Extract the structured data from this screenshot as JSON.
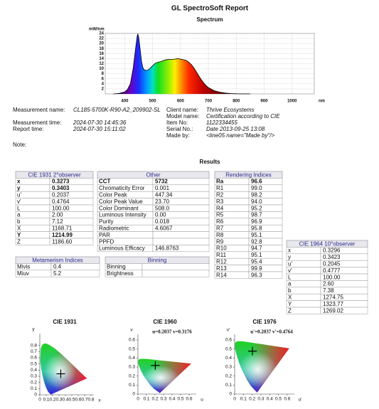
{
  "title": "GL SpectroSoft Report",
  "spectrum": {
    "type": "line",
    "title": "Spectrum",
    "y_label": "mW/nm",
    "x_label": "nm",
    "xlim": [
      330,
      1080
    ],
    "ylim": [
      0,
      24
    ],
    "xticks": [
      400,
      500,
      600,
      700,
      800,
      900,
      1000
    ],
    "yticks": [
      2,
      4,
      6,
      8,
      10,
      12,
      14,
      16,
      18,
      20,
      22,
      24
    ],
    "x": [
      360,
      380,
      400,
      410,
      420,
      430,
      440,
      445,
      447,
      450,
      455,
      460,
      465,
      470,
      480,
      490,
      500,
      510,
      520,
      530,
      540,
      550,
      560,
      570,
      580,
      590,
      600,
      610,
      620,
      630,
      640,
      650,
      660,
      670,
      680,
      690,
      700,
      720,
      740,
      760,
      780,
      800,
      850
    ],
    "values": [
      0,
      0.2,
      0.8,
      1.8,
      4,
      10,
      19,
      23.2,
      23.7,
      22.5,
      18,
      13,
      10.5,
      9.5,
      9.3,
      10,
      11.2,
      12.2,
      12.6,
      12.8,
      13.3,
      13.6,
      13.7,
      13.7,
      13.8,
      14,
      13.8,
      13.6,
      13.3,
      12.6,
      11.5,
      10,
      8.2,
      6.4,
      4.8,
      3.5,
      2.5,
      1.3,
      0.7,
      0.35,
      0.15,
      0.05,
      0
    ]
  },
  "info": {
    "left": [
      {
        "label": "Measurement name:",
        "value": "CL185-5700K-R90-A2_209902-SL"
      },
      {
        "label": "Measurement time:",
        "value": "2024-07-30 14:45:36"
      },
      {
        "label": "Report time:",
        "value": "2024-07-30 15:11:02"
      }
    ],
    "right": [
      {
        "label": "Client name:",
        "value": "Thrive Ecosystems"
      },
      {
        "label": "Model name:",
        "value": "Certification according to CIE"
      },
      {
        "label": "Item No:",
        "value": "1122334455"
      },
      {
        "label": "Serial No.:",
        "value": "Date 2013-09-25 13:08"
      },
      {
        "label": "Made by:",
        "value": "<line05 name=\"Made by\"/>"
      }
    ],
    "note": "Note:"
  },
  "results": {
    "title": "Results",
    "tables": [
      {
        "title": "CIE 1931 2°observer",
        "rows": [
          {
            "label": "x",
            "value": "0.3273",
            "bold": true
          },
          {
            "label": "y",
            "value": "0.3403",
            "bold": true
          },
          {
            "label": "u'",
            "value": "0.2037"
          },
          {
            "label": "v'",
            "value": "0.4764"
          },
          {
            "label": "L",
            "value": "100.00"
          },
          {
            "label": "a",
            "value": "2.00"
          },
          {
            "label": "b",
            "value": "7.12"
          },
          {
            "label": "X",
            "value": "1168.71"
          },
          {
            "label": "Y",
            "value": "1214.99",
            "bold": true
          },
          {
            "label": "Z",
            "value": "1186.60"
          }
        ]
      },
      {
        "title": "Other",
        "rows": [
          {
            "label": "CCT",
            "value": "5732",
            "bold": true
          },
          {
            "label": "Chromaticity Error",
            "value": "0.001"
          },
          {
            "label": "Color Peak",
            "value": "447.34"
          },
          {
            "label": "Color Peak Value",
            "value": "23.70"
          },
          {
            "label": "Color Dominant",
            "value": "508.0"
          },
          {
            "label": "Luminous Intensity",
            "value": "0.00"
          },
          {
            "label": "Purity",
            "value": "0.018"
          },
          {
            "label": "Radiometric",
            "value": "4.6067"
          },
          {
            "label": "PAR"
          },
          {
            "label": "PPFD"
          },
          {
            "label": "Luminous Efficacy",
            "value": "146.8763"
          }
        ]
      },
      {
        "title": "Rendering Indices",
        "rows": [
          {
            "label": "Ra",
            "value": "96.6",
            "bold": true
          },
          {
            "label": "R1",
            "value": "99.0"
          },
          {
            "label": "R2",
            "value": "98.2"
          },
          {
            "label": "R3",
            "value": "94.0"
          },
          {
            "label": "R4",
            "value": "95.2"
          },
          {
            "label": "R5",
            "value": "98.7"
          },
          {
            "label": "R6",
            "value": "96.9"
          },
          {
            "label": "R7",
            "value": "95.8"
          },
          {
            "label": "R8",
            "value": "95.1"
          },
          {
            "label": "R9",
            "value": "92.8"
          },
          {
            "label": "R10",
            "value": "94.7"
          },
          {
            "label": "R11",
            "value": "95.1"
          },
          {
            "label": "R12",
            "value": "95.4"
          },
          {
            "label": "R13",
            "value": "99.9"
          },
          {
            "label": "R14",
            "value": "96.3"
          }
        ]
      },
      {
        "title": "CIE 1964 10°observer",
        "rows": [
          {
            "label": "x",
            "value": "0.3296"
          },
          {
            "label": "y",
            "value": "0.3423"
          },
          {
            "label": "u'",
            "value": "0.2045"
          },
          {
            "label": "v'",
            "value": "0.4777"
          },
          {
            "label": "L",
            "value": "100.00"
          },
          {
            "label": "a",
            "value": "2.60"
          },
          {
            "label": "b",
            "value": "7.38"
          },
          {
            "label": "X",
            "value": "1274.75"
          },
          {
            "label": "Y",
            "value": "1323.77"
          },
          {
            "label": "Z",
            "value": "1269.02"
          }
        ]
      },
      {
        "title": "Metamerism Indices",
        "rows": [
          {
            "label": "Mivis",
            "value": "0.4"
          },
          {
            "label": "Miuv",
            "value": "5.2"
          }
        ]
      },
      {
        "title": "Binning",
        "rows": [
          {
            "label": "Binning"
          },
          {
            "label": "Brightness"
          }
        ]
      }
    ]
  },
  "cie": [
    {
      "title": "CIE 1931",
      "space": "xy",
      "x_label": "x",
      "y_label": "y",
      "xlim": [
        0,
        0.8
      ],
      "ylim": [
        0,
        0.9
      ],
      "xticks": [
        0,
        0.1,
        0.2,
        0.3,
        0.4,
        0.5,
        0.6,
        0.7,
        0.8
      ],
      "yticks": [
        0,
        0.1,
        0.2,
        0.3,
        0.4,
        0.5,
        0.6,
        0.7,
        0.8
      ],
      "point": [
        0.3273,
        0.3403
      ]
    },
    {
      "title": "CIE 1960",
      "space": "uv",
      "annotation": "u=0.2037 v=0.3176",
      "x_label": "u",
      "y_label": "v",
      "xlim": [
        0,
        0.65
      ],
      "ylim": [
        0,
        0.6
      ],
      "xticks": [
        0,
        0.1,
        0.2,
        0.3,
        0.4,
        0.5,
        0.6
      ],
      "yticks": [
        0,
        0.1,
        0.2,
        0.3,
        0.4,
        0.5,
        0.6
      ],
      "point": [
        0.2037,
        0.3176
      ]
    },
    {
      "title": "CIE 1976",
      "space": "u'v'",
      "annotation": "u'=0.2037 v'=0.4764",
      "x_label": "u'",
      "y_label": "v'",
      "xlim": [
        0,
        0.65
      ],
      "ylim": [
        0,
        0.6
      ],
      "xticks": [
        0,
        0.1,
        0.2,
        0.3,
        0.4,
        0.5,
        0.6
      ],
      "yticks": [
        0,
        0.1,
        0.2,
        0.3,
        0.4,
        0.5,
        0.6
      ],
      "point": [
        0.2037,
        0.4764
      ]
    }
  ]
}
